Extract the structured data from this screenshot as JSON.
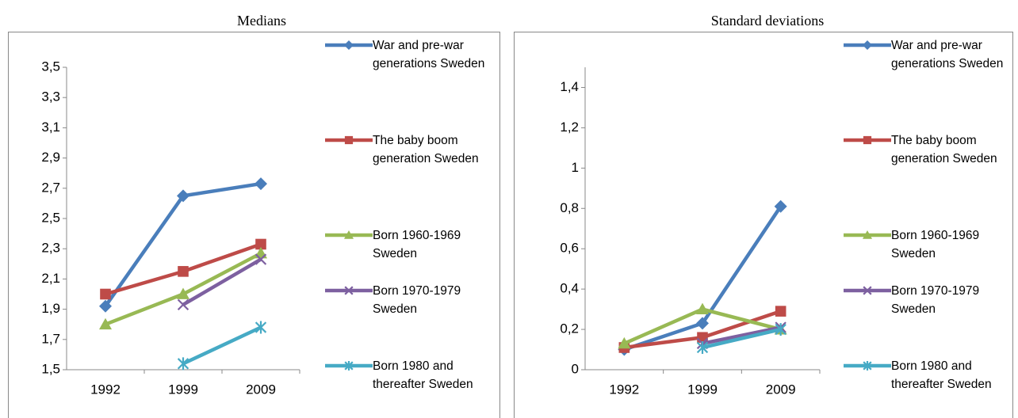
{
  "chart_data": [
    {
      "type": "line",
      "title": "Medians",
      "categories": [
        "1992",
        "1999",
        "2009"
      ],
      "series": [
        {
          "name": "War and pre-war generations Sweden",
          "color": "#4a7ebb",
          "marker": "diamond",
          "values": [
            1.92,
            2.65,
            2.73
          ]
        },
        {
          "name": "The baby boom generation Sweden",
          "color": "#be4b48",
          "marker": "square",
          "values": [
            2.0,
            2.15,
            2.33
          ]
        },
        {
          "name": "Born 1960-1969 Sweden",
          "color": "#98b954",
          "marker": "triangle",
          "values": [
            1.8,
            2.0,
            2.27
          ]
        },
        {
          "name": "Born 1970-1979 Sweden",
          "color": "#7d60a0",
          "marker": "x",
          "values": [
            null,
            1.93,
            2.23
          ]
        },
        {
          "name": "Born 1980 and thereafter Sweden",
          "color": "#46aac5",
          "marker": "star",
          "values": [
            null,
            1.54,
            1.78
          ]
        }
      ],
      "ylim": [
        1.5,
        3.5
      ],
      "yticks": [
        {
          "value": 1.5,
          "label": "1,5"
        },
        {
          "value": 1.7,
          "label": "1,7"
        },
        {
          "value": 1.9,
          "label": "1,9"
        },
        {
          "value": 2.1,
          "label": "2,1"
        },
        {
          "value": 2.3,
          "label": "2,3"
        },
        {
          "value": 2.5,
          "label": "2,5"
        },
        {
          "value": 2.7,
          "label": "2,7"
        },
        {
          "value": 2.9,
          "label": "2,9"
        },
        {
          "value": 3.1,
          "label": "3,1"
        },
        {
          "value": 3.3,
          "label": "3,3"
        },
        {
          "value": 3.5,
          "label": "3,5"
        }
      ],
      "grid": false,
      "legend": "right"
    },
    {
      "type": "line",
      "title": "Standard deviations",
      "categories": [
        "1992",
        "1999",
        "2009"
      ],
      "series": [
        {
          "name": "War and pre-war generations Sweden",
          "color": "#4a7ebb",
          "marker": "diamond",
          "values": [
            0.1,
            0.23,
            0.81
          ]
        },
        {
          "name": "The baby boom generation Sweden",
          "color": "#be4b48",
          "marker": "square",
          "values": [
            0.11,
            0.16,
            0.29
          ]
        },
        {
          "name": "Born 1960-1969 Sweden",
          "color": "#98b954",
          "marker": "triangle",
          "values": [
            0.13,
            0.3,
            0.2
          ]
        },
        {
          "name": "Born 1970-1979 Sweden",
          "color": "#7d60a0",
          "marker": "x",
          "values": [
            null,
            0.13,
            0.21
          ]
        },
        {
          "name": "Born 1980 and thereafter Sweden",
          "color": "#46aac5",
          "marker": "star",
          "values": [
            null,
            0.11,
            0.2
          ]
        }
      ],
      "ylim": [
        0,
        1.5
      ],
      "yticks": [
        0,
        {
          "value": 0.2,
          "label": "0,2"
        },
        {
          "value": 0.4,
          "label": "0,4"
        },
        {
          "value": 0.6,
          "label": "0,6"
        },
        {
          "value": 0.8,
          "label": "0,8"
        },
        1,
        {
          "value": 1.2,
          "label": "1,2"
        },
        {
          "value": 1.4,
          "label": "1,4"
        }
      ],
      "grid": false,
      "legend": "right"
    }
  ]
}
